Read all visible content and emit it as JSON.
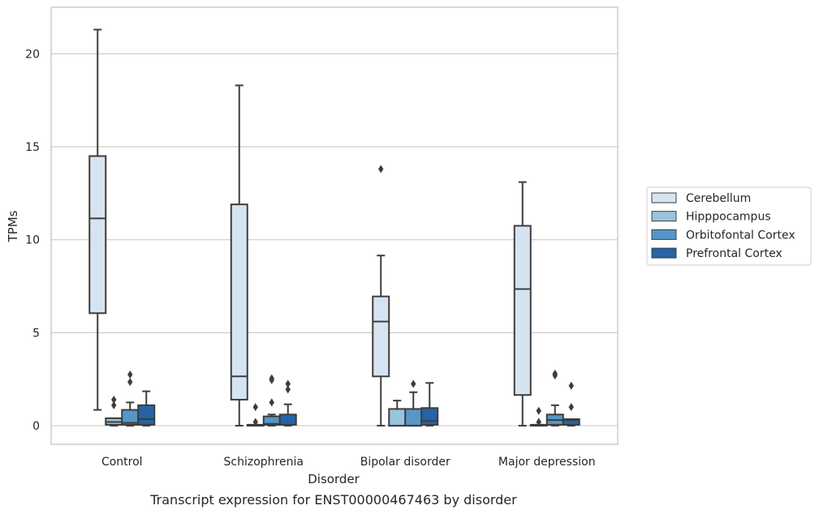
{
  "chart_data": {
    "type": "box",
    "title": "",
    "caption": "Transcript expression for ENST00000467463 by disorder",
    "xlabel": "Disorder",
    "ylabel": "TPMs",
    "ylim": [
      -1.0,
      22.5
    ],
    "yticks": [
      0,
      5,
      10,
      15,
      20
    ],
    "grid": "horizontal",
    "legend_position": "right",
    "categories": [
      "Control",
      "Schizophrenia",
      "Bipolar disorder",
      "Major depression"
    ],
    "series": [
      {
        "name": "Cerebellum",
        "color": "#d6e4f2",
        "boxes": [
          {
            "whisker_low": 0.85,
            "q1": 6.05,
            "median": 11.15,
            "q3": 14.5,
            "whisker_high": 21.3,
            "outliers": []
          },
          {
            "whisker_low": 0.0,
            "q1": 1.4,
            "median": 2.65,
            "q3": 11.9,
            "whisker_high": 18.3,
            "outliers": []
          },
          {
            "whisker_low": 0.0,
            "q1": 2.65,
            "median": 5.6,
            "q3": 6.95,
            "whisker_high": 9.15,
            "outliers": [
              13.8
            ]
          },
          {
            "whisker_low": 0.0,
            "q1": 1.65,
            "median": 7.35,
            "q3": 10.75,
            "whisker_high": 13.1,
            "outliers": []
          }
        ]
      },
      {
        "name": "Hipppocampus",
        "color": "#9ac3de",
        "boxes": [
          {
            "whisker_low": 0.0,
            "q1": 0.05,
            "median": 0.2,
            "q3": 0.4,
            "whisker_high": 0.4,
            "outliers": [
              1.1,
              1.4
            ]
          },
          {
            "whisker_low": 0.0,
            "q1": 0.0,
            "median": 0.02,
            "q3": 0.05,
            "whisker_high": 0.05,
            "outliers": [
              0.2,
              1.0
            ]
          },
          {
            "whisker_low": 0.0,
            "q1": 0.0,
            "median": 0.0,
            "q3": 0.9,
            "whisker_high": 1.35,
            "outliers": []
          },
          {
            "whisker_low": 0.0,
            "q1": 0.0,
            "median": 0.02,
            "q3": 0.05,
            "whisker_high": 0.05,
            "outliers": [
              0.2,
              0.8
            ]
          }
        ]
      },
      {
        "name": "Orbitofontal Cortex",
        "color": "#5697c7",
        "boxes": [
          {
            "whisker_low": 0.0,
            "q1": 0.05,
            "median": 0.15,
            "q3": 0.85,
            "whisker_high": 1.25,
            "outliers": [
              2.35,
              2.75
            ]
          },
          {
            "whisker_low": 0.0,
            "q1": 0.05,
            "median": 0.1,
            "q3": 0.5,
            "whisker_high": 0.6,
            "outliers": [
              1.25,
              2.45,
              2.55
            ]
          },
          {
            "whisker_low": 0.0,
            "q1": 0.0,
            "median": 0.0,
            "q3": 0.9,
            "whisker_high": 1.8,
            "outliers": [
              2.25
            ]
          },
          {
            "whisker_low": 0.0,
            "q1": 0.05,
            "median": 0.3,
            "q3": 0.6,
            "whisker_high": 1.1,
            "outliers": [
              2.7,
              2.8
            ]
          }
        ]
      },
      {
        "name": "Prefrontal Cortex",
        "color": "#2464a7",
        "boxes": [
          {
            "whisker_low": 0.0,
            "q1": 0.05,
            "median": 0.35,
            "q3": 1.1,
            "whisker_high": 1.85,
            "outliers": []
          },
          {
            "whisker_low": 0.0,
            "q1": 0.05,
            "median": 0.05,
            "q3": 0.6,
            "whisker_high": 1.15,
            "outliers": [
              1.95,
              2.25
            ]
          },
          {
            "whisker_low": 0.0,
            "q1": 0.05,
            "median": 0.25,
            "q3": 0.95,
            "whisker_high": 2.3,
            "outliers": []
          },
          {
            "whisker_low": 0.0,
            "q1": 0.05,
            "median": 0.3,
            "q3": 0.35,
            "whisker_high": 0.35,
            "outliers": [
              1.0,
              2.15
            ]
          }
        ]
      }
    ]
  }
}
